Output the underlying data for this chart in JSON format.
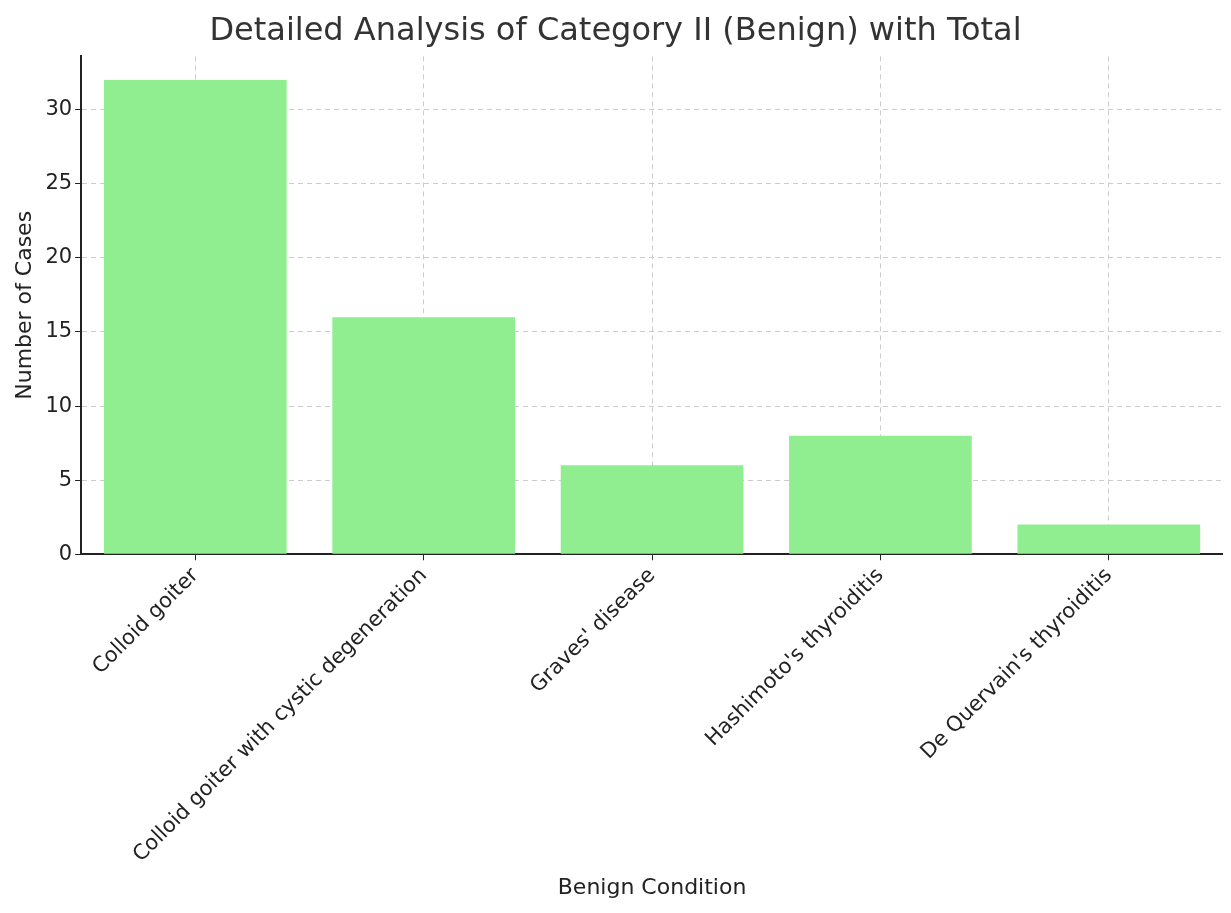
{
  "chart_data": {
    "type": "bar",
    "title": "Detailed Analysis of Category II (Benign) with Total",
    "xlabel": "Benign Condition",
    "ylabel": "Number of Cases",
    "categories": [
      "Colloid goiter",
      "Colloid goiter with cystic degeneration",
      "Graves' disease",
      "Hashimoto's thyroiditis",
      "De Quervain's thyroiditis"
    ],
    "values": [
      32,
      16,
      6,
      8,
      2
    ],
    "color": "#90ee90",
    "ylim": [
      0,
      33.6
    ],
    "yticks": [
      0,
      5,
      10,
      15,
      20,
      25,
      30
    ],
    "grid": true,
    "legend": false
  }
}
